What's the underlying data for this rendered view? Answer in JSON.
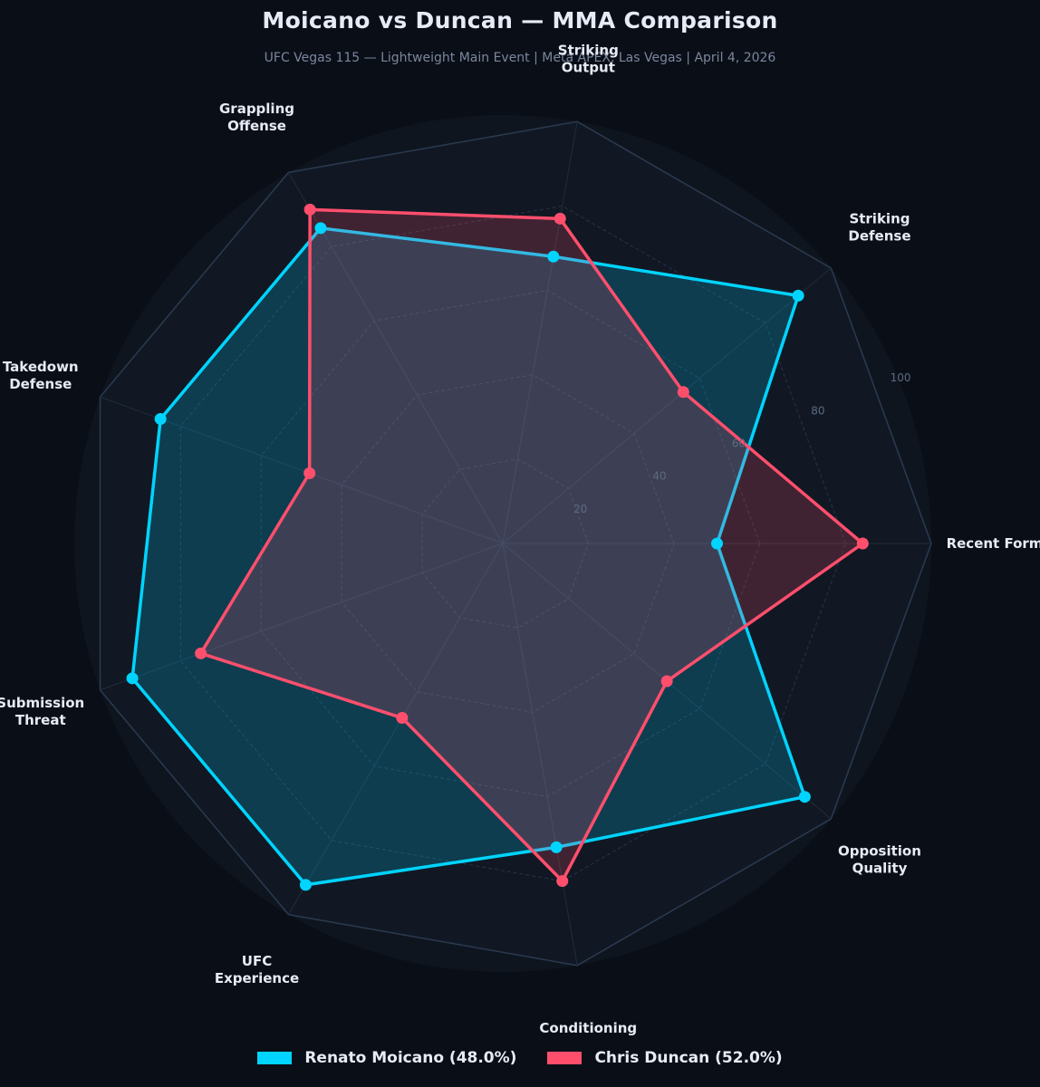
{
  "header": {
    "title": "Moicano vs Duncan — MMA Comparison",
    "subtitle": "UFC Vegas 115 — Lightweight Main Event | Meta APEX, Las Vegas | April 4, 2026"
  },
  "legend": {
    "items": [
      {
        "label": "Renato Moicano  (48.0%)",
        "color": "#00d4ff"
      },
      {
        "label": "Chris Duncan  (52.0%)",
        "color": "#ff4f6d"
      }
    ]
  },
  "chart_data": {
    "type": "radar",
    "title": "Moicano vs Duncan — MMA Comparison",
    "subtitle": "UFC Vegas 115 — Lightweight Main Event | Meta APEX, Las Vegas | April 4, 2026",
    "categories": [
      [
        "Recent Form"
      ],
      [
        "Striking",
        "Defense"
      ],
      [
        "Striking",
        "Output"
      ],
      [
        "Grappling",
        "Offense"
      ],
      [
        "Takedown",
        "Defense"
      ],
      [
        "Submission",
        "Threat"
      ],
      [
        "UFC",
        "Experience"
      ],
      [
        "Conditioning"
      ],
      [
        "Opposition",
        "Quality"
      ]
    ],
    "rlim": [
      0,
      100
    ],
    "rticks": [
      20,
      40,
      60,
      80,
      100
    ],
    "series": [
      {
        "name": "Renato Moicano",
        "share": "48.0%",
        "color": "#00d4ff",
        "values": [
          50,
          90,
          68,
          85,
          85,
          92,
          92,
          72,
          92
        ]
      },
      {
        "name": "Chris Duncan",
        "share": "52.0%",
        "color": "#ff4f6d",
        "values": [
          84,
          55,
          77,
          90,
          48,
          75,
          47,
          80,
          50
        ]
      }
    ]
  }
}
